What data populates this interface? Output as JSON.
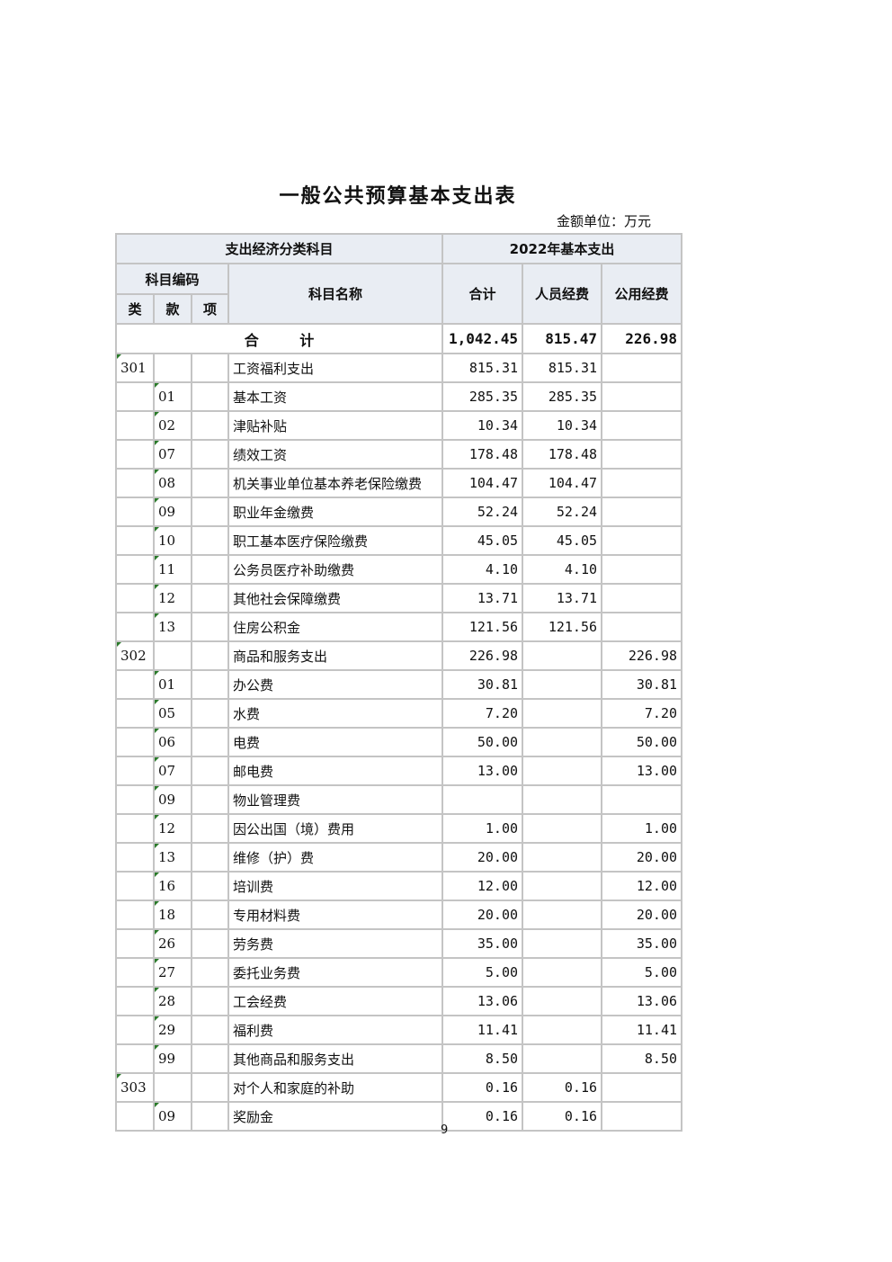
{
  "title": "一般公共预算基本支出表",
  "unit": "金额单位：万元",
  "header": {
    "group1": "支出经济分类科目",
    "group2": "2022年基本支出",
    "code": "科目编码",
    "lei": "类",
    "kuan": "款",
    "xiang": "项",
    "name": "科目名称",
    "total": "合计",
    "personnel": "人员经费",
    "public": "公用经费"
  },
  "total_row": {
    "label": "合 计",
    "total": "1,042.45",
    "personnel": "815.47",
    "public": "226.98"
  },
  "rows": [
    {
      "lei": "301",
      "kuan": "",
      "name": "工资福利支出",
      "total": "815.31",
      "personnel": "815.31",
      "public": ""
    },
    {
      "lei": "",
      "kuan": "01",
      "name": "基本工资",
      "total": "285.35",
      "personnel": "285.35",
      "public": ""
    },
    {
      "lei": "",
      "kuan": "02",
      "name": "津贴补贴",
      "total": "10.34",
      "personnel": "10.34",
      "public": ""
    },
    {
      "lei": "",
      "kuan": "07",
      "name": "绩效工资",
      "total": "178.48",
      "personnel": "178.48",
      "public": ""
    },
    {
      "lei": "",
      "kuan": "08",
      "name": "机关事业单位基本养老保险缴费",
      "total": "104.47",
      "personnel": "104.47",
      "public": ""
    },
    {
      "lei": "",
      "kuan": "09",
      "name": "职业年金缴费",
      "total": "52.24",
      "personnel": "52.24",
      "public": ""
    },
    {
      "lei": "",
      "kuan": "10",
      "name": "职工基本医疗保险缴费",
      "total": "45.05",
      "personnel": "45.05",
      "public": ""
    },
    {
      "lei": "",
      "kuan": "11",
      "name": "公务员医疗补助缴费",
      "total": "4.10",
      "personnel": "4.10",
      "public": ""
    },
    {
      "lei": "",
      "kuan": "12",
      "name": "其他社会保障缴费",
      "total": "13.71",
      "personnel": "13.71",
      "public": ""
    },
    {
      "lei": "",
      "kuan": "13",
      "name": "住房公积金",
      "total": "121.56",
      "personnel": "121.56",
      "public": ""
    },
    {
      "lei": "302",
      "kuan": "",
      "name": "商品和服务支出",
      "total": "226.98",
      "personnel": "",
      "public": "226.98"
    },
    {
      "lei": "",
      "kuan": "01",
      "name": "办公费",
      "total": "30.81",
      "personnel": "",
      "public": "30.81"
    },
    {
      "lei": "",
      "kuan": "05",
      "name": "水费",
      "total": "7.20",
      "personnel": "",
      "public": "7.20"
    },
    {
      "lei": "",
      "kuan": "06",
      "name": "电费",
      "total": "50.00",
      "personnel": "",
      "public": "50.00"
    },
    {
      "lei": "",
      "kuan": "07",
      "name": "邮电费",
      "total": "13.00",
      "personnel": "",
      "public": "13.00"
    },
    {
      "lei": "",
      "kuan": "09",
      "name": "物业管理费",
      "total": "",
      "personnel": "",
      "public": ""
    },
    {
      "lei": "",
      "kuan": "12",
      "name": "因公出国（境）费用",
      "total": "1.00",
      "personnel": "",
      "public": "1.00"
    },
    {
      "lei": "",
      "kuan": "13",
      "name": "维修（护）费",
      "total": "20.00",
      "personnel": "",
      "public": "20.00"
    },
    {
      "lei": "",
      "kuan": "16",
      "name": "培训费",
      "total": "12.00",
      "personnel": "",
      "public": "12.00"
    },
    {
      "lei": "",
      "kuan": "18",
      "name": "专用材料费",
      "total": "20.00",
      "personnel": "",
      "public": "20.00"
    },
    {
      "lei": "",
      "kuan": "26",
      "name": "劳务费",
      "total": "35.00",
      "personnel": "",
      "public": "35.00"
    },
    {
      "lei": "",
      "kuan": "27",
      "name": "委托业务费",
      "total": "5.00",
      "personnel": "",
      "public": "5.00"
    },
    {
      "lei": "",
      "kuan": "28",
      "name": "工会经费",
      "total": "13.06",
      "personnel": "",
      "public": "13.06"
    },
    {
      "lei": "",
      "kuan": "29",
      "name": "福利费",
      "total": "11.41",
      "personnel": "",
      "public": "11.41"
    },
    {
      "lei": "",
      "kuan": "99",
      "name": "其他商品和服务支出",
      "total": "8.50",
      "personnel": "",
      "public": "8.50"
    },
    {
      "lei": "303",
      "kuan": "",
      "name": "对个人和家庭的补助",
      "total": "0.16",
      "personnel": "0.16",
      "public": ""
    },
    {
      "lei": "",
      "kuan": "09",
      "name": "奖励金",
      "total": "0.16",
      "personnel": "0.16",
      "public": ""
    }
  ],
  "page_number": "9",
  "colors": {
    "header_bg": "#e9edf3",
    "border": "#c4c4c4",
    "cell_marker": "#2a7a2a"
  }
}
